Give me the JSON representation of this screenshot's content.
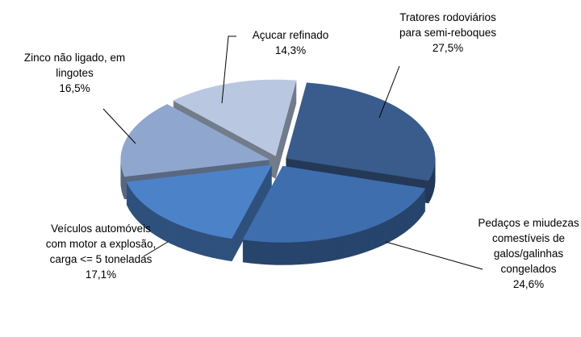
{
  "chart_data": {
    "type": "pie",
    "categories": [
      "Tratores rodoviários para semi-reboques",
      "Pedaços e miudezas comestíveis de galos/galinhas congelados",
      "Veículos automóveis com motor a explosão, carga <= 5 toneladas",
      "Zinco não ligado, em lingotes",
      "Açucar refinado"
    ],
    "values": [
      27.5,
      24.6,
      17.1,
      16.5,
      14.3
    ],
    "value_labels": [
      "27,5%",
      "24,6%",
      "17,1%",
      "16,5%",
      "14,3%"
    ],
    "colors": [
      "#3a5c8c",
      "#3f6eae",
      "#4c82c8",
      "#8fa7cf",
      "#b9c8e0"
    ]
  }
}
